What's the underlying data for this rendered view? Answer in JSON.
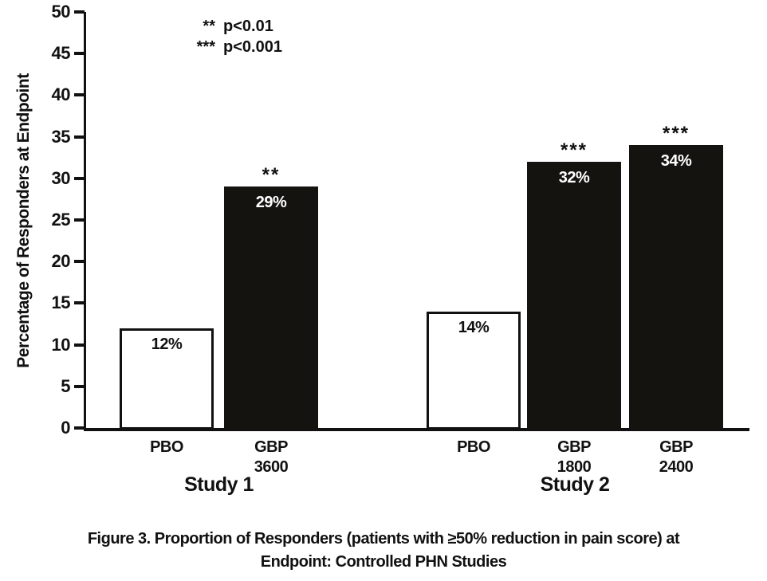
{
  "chart_data": {
    "type": "bar",
    "title": "",
    "ylabel": "Percentage of Responders at Endpoint",
    "xlabel": "",
    "ylim": [
      0,
      50
    ],
    "yticks": [
      0,
      5,
      10,
      15,
      20,
      25,
      30,
      35,
      40,
      45,
      50
    ],
    "grid": false,
    "legend_position": "top-left",
    "legend": [
      {
        "symbol": "**",
        "text": "p<0.01"
      },
      {
        "symbol": "***",
        "text": "p<0.001"
      }
    ],
    "groups": [
      {
        "label": "Study 1",
        "bars": [
          {
            "x_label": "PBO",
            "value": 12,
            "value_label": "12%",
            "fill": "white",
            "sig": ""
          },
          {
            "x_label": "GBP\n3600",
            "value": 29,
            "value_label": "29%",
            "fill": "black",
            "sig": "**"
          }
        ]
      },
      {
        "label": "Study 2",
        "bars": [
          {
            "x_label": "PBO",
            "value": 14,
            "value_label": "14%",
            "fill": "white",
            "sig": ""
          },
          {
            "x_label": "GBP\n1800",
            "value": 32,
            "value_label": "32%",
            "fill": "black",
            "sig": "***"
          },
          {
            "x_label": "GBP\n2400",
            "value": 34,
            "value_label": "34%",
            "fill": "black",
            "sig": "***"
          }
        ]
      }
    ],
    "caption": "Figure 3. Proportion of Responders (patients with ≥50% reduction in pain score) at\nEndpoint: Controlled PHN Studies"
  }
}
